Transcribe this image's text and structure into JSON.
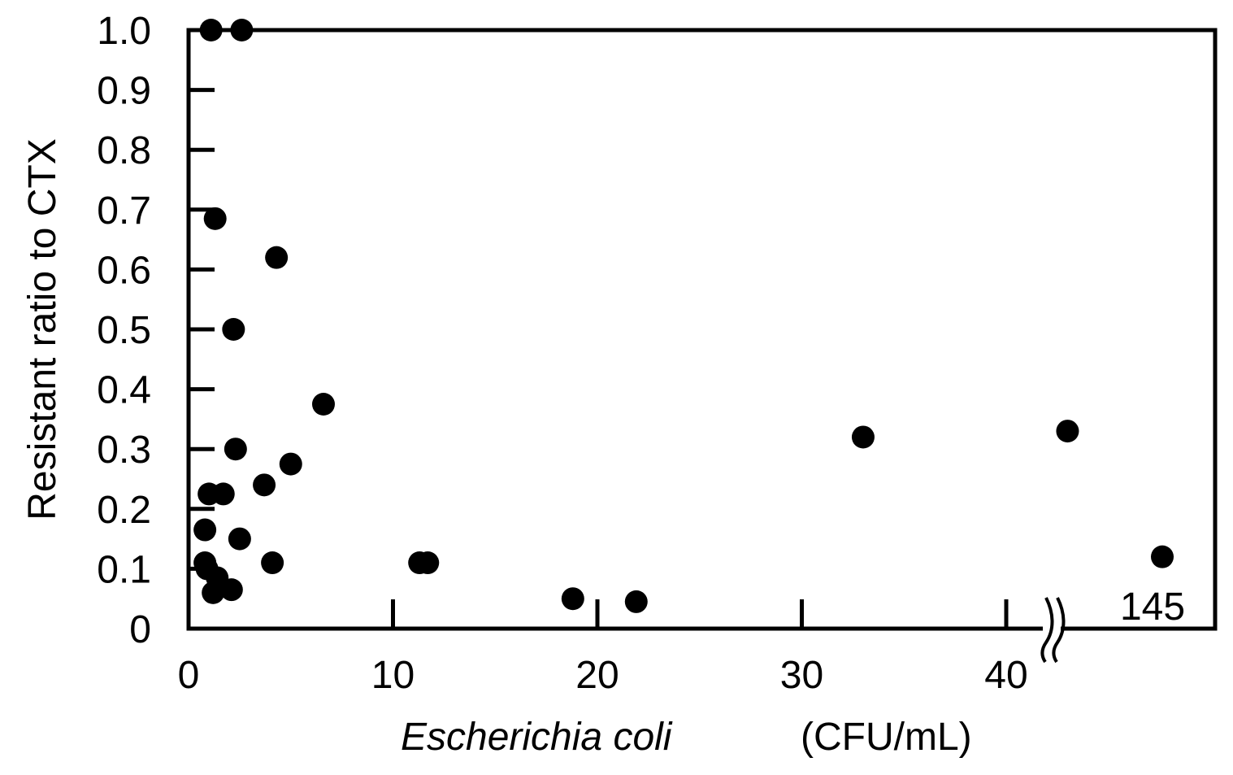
{
  "chart_data": {
    "type": "scatter",
    "title": "",
    "xlabel_italic": "Escherichia coli",
    "xlabel_unit": "(CFU/mL)",
    "ylabel": "Resistant ratio to CTX",
    "xlim": [
      0,
      50
    ],
    "ylim": [
      0,
      1.0
    ],
    "x_ticks": [
      0,
      10,
      20,
      30,
      40
    ],
    "x_tick_labels": [
      "0",
      "10",
      "20",
      "30",
      "40"
    ],
    "y_ticks": [
      0,
      0.1,
      0.2,
      0.3,
      0.4,
      0.5,
      0.6,
      0.7,
      0.8,
      0.9,
      1.0
    ],
    "y_tick_labels": [
      "0",
      "0.1",
      "0.2",
      "0.3",
      "0.4",
      "0.5",
      "0.6",
      "0.7",
      "0.8",
      "0.9",
      "1.0"
    ],
    "axis_break": {
      "x": 42.5,
      "right_end_label": "145"
    },
    "grid": false,
    "legend": "none",
    "series": [
      {
        "color": "#000000",
        "points": [
          {
            "x": 1.1,
            "y": 1.0
          },
          {
            "x": 2.6,
            "y": 1.0
          },
          {
            "x": 1.3,
            "y": 0.685
          },
          {
            "x": 4.3,
            "y": 0.62
          },
          {
            "x": 2.2,
            "y": 0.5
          },
          {
            "x": 6.6,
            "y": 0.375
          },
          {
            "x": 2.3,
            "y": 0.3
          },
          {
            "x": 5.0,
            "y": 0.275
          },
          {
            "x": 3.7,
            "y": 0.24
          },
          {
            "x": 1.0,
            "y": 0.225
          },
          {
            "x": 1.7,
            "y": 0.225
          },
          {
            "x": 0.8,
            "y": 0.165
          },
          {
            "x": 2.5,
            "y": 0.15
          },
          {
            "x": 0.8,
            "y": 0.11
          },
          {
            "x": 4.1,
            "y": 0.11
          },
          {
            "x": 11.3,
            "y": 0.11
          },
          {
            "x": 11.7,
            "y": 0.11
          },
          {
            "x": 0.9,
            "y": 0.1
          },
          {
            "x": 1.4,
            "y": 0.085
          },
          {
            "x": 2.1,
            "y": 0.065
          },
          {
            "x": 1.2,
            "y": 0.06
          },
          {
            "x": 18.8,
            "y": 0.05
          },
          {
            "x": 21.9,
            "y": 0.045
          },
          {
            "x": 33.0,
            "y": 0.32
          },
          {
            "x": 43.0,
            "y": 0.33
          },
          {
            "x": 145,
            "y": 0.12,
            "beyond_break": true
          }
        ]
      }
    ]
  }
}
